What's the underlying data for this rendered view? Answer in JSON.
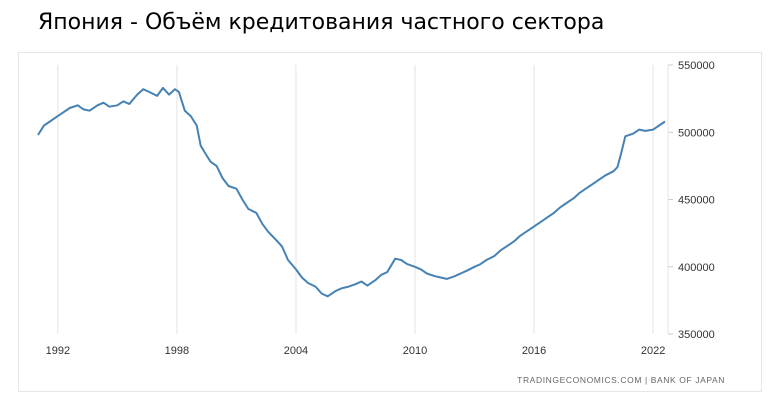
{
  "chart_data": {
    "type": "line",
    "title": "Япония - Объём кредитования частного сектора",
    "source": "TRADINGECONOMICS.COM  |  BANK OF JAPAN",
    "xlim": [
      1991.0,
      2023.0
    ],
    "ylim": [
      350000,
      550000
    ],
    "x_ticks": [
      {
        "value": 1992,
        "label": "1992"
      },
      {
        "value": 1998,
        "label": "1998"
      },
      {
        "value": 2004,
        "label": "2004"
      },
      {
        "value": 2010,
        "label": "2010"
      },
      {
        "value": 2016,
        "label": "2016"
      },
      {
        "value": 2022,
        "label": "2022"
      }
    ],
    "y_ticks": [
      {
        "value": 350000,
        "label": "350000"
      },
      {
        "value": 400000,
        "label": "400000"
      },
      {
        "value": 450000,
        "label": "450000"
      },
      {
        "value": 500000,
        "label": "500000"
      },
      {
        "value": 550000,
        "label": "550000"
      }
    ],
    "grid": "vertical",
    "line_color": "#4682b4",
    "series": [
      {
        "x": [
          1991.0,
          1991.3,
          1991.6,
          1992.0,
          1992.3,
          1992.6,
          1993.0,
          1993.3,
          1993.6,
          1994.0,
          1994.3,
          1994.6,
          1995.0,
          1995.3,
          1995.6,
          1996.0,
          1996.3,
          1996.6,
          1997.0,
          1997.3,
          1997.6,
          1997.9,
          1998.1,
          1998.4,
          1998.7,
          1999.0,
          1999.2,
          1999.4,
          1999.7,
          2000.0,
          2000.3,
          2000.6,
          2001.0,
          2001.3,
          2001.6,
          2002.0,
          2002.3,
          2002.6,
          2003.0,
          2003.3,
          2003.6,
          2004.0,
          2004.3,
          2004.6,
          2005.0,
          2005.3,
          2005.6,
          2006.0,
          2006.3,
          2006.6,
          2007.0,
          2007.3,
          2007.6,
          2008.0,
          2008.3,
          2008.6,
          2009.0,
          2009.3,
          2009.6,
          2010.0,
          2010.3,
          2010.6,
          2011.0,
          2011.3,
          2011.6,
          2012.0,
          2012.3,
          2012.6,
          2013.0,
          2013.3,
          2013.6,
          2014.0,
          2014.3,
          2014.6,
          2015.0,
          2015.3,
          2015.6,
          2016.0,
          2016.3,
          2016.6,
          2017.0,
          2017.3,
          2017.6,
          2018.0,
          2018.3,
          2018.6,
          2019.0,
          2019.3,
          2019.6,
          2020.0,
          2020.2,
          2020.4,
          2020.6,
          2021.0,
          2021.3,
          2021.6,
          2022.0,
          2022.3,
          2022.6
        ],
        "y": [
          498000,
          505000,
          508000,
          512000,
          515000,
          518000,
          520000,
          517000,
          516000,
          520000,
          522000,
          519000,
          520000,
          523000,
          521000,
          528000,
          532000,
          530000,
          527000,
          533000,
          528000,
          532000,
          530000,
          516000,
          512000,
          505000,
          490000,
          485000,
          478000,
          475000,
          466000,
          460000,
          458000,
          450000,
          443000,
          440000,
          432000,
          426000,
          420000,
          415000,
          405000,
          398000,
          392000,
          388000,
          385000,
          380000,
          378000,
          382000,
          384000,
          385000,
          387000,
          389000,
          386000,
          390000,
          394000,
          396000,
          406000,
          405000,
          402000,
          400000,
          398000,
          395000,
          393000,
          392000,
          391000,
          393000,
          395000,
          397000,
          400000,
          402000,
          405000,
          408000,
          412000,
          415000,
          419000,
          423000,
          426000,
          430000,
          433000,
          436000,
          440000,
          444000,
          447000,
          451000,
          455000,
          458000,
          462000,
          465000,
          468000,
          471000,
          474000,
          485000,
          497000,
          499000,
          502000,
          501000,
          502000,
          505000,
          508000
        ]
      }
    ]
  }
}
